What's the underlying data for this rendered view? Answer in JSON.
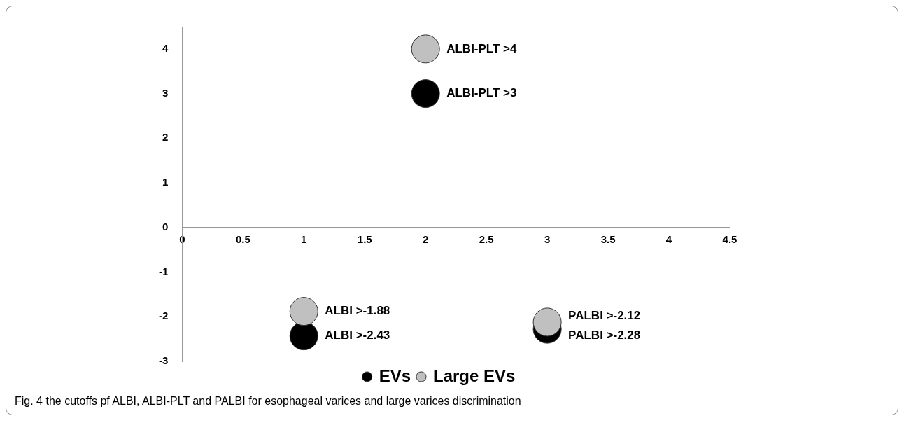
{
  "chart_data": {
    "type": "scatter",
    "xlim": [
      0,
      4.5
    ],
    "xticks": [
      0,
      0.5,
      1,
      1.5,
      2,
      2.5,
      3,
      3.5,
      4,
      4.5
    ],
    "ylim": [
      -3,
      4.5
    ],
    "yticks": [
      -3,
      -2,
      -1,
      0,
      1,
      2,
      3,
      4
    ],
    "grid": false,
    "legend": "bottom",
    "marker": "circle",
    "series": [
      {
        "name": "EVs",
        "color": "#000000",
        "x": [
          2,
          1,
          3
        ],
        "values": [
          3,
          -2.43,
          -2.28
        ]
      },
      {
        "name": "Large EVs",
        "color": "#c0c0c0",
        "x": [
          2,
          1,
          3
        ],
        "values": [
          4,
          -1.88,
          -2.12
        ]
      }
    ],
    "annotations": [
      {
        "text": "ALBI-PLT >4",
        "x": 2,
        "y": 4
      },
      {
        "text": "ALBI-PLT >3",
        "x": 2,
        "y": 3
      },
      {
        "text": "ALBI >-1.88",
        "x": 1,
        "y": -1.88
      },
      {
        "text": "ALBI >-2.43",
        "x": 1,
        "y": -2.43
      },
      {
        "text": "PALBI >-2.12",
        "x": 3,
        "y": -2.12
      },
      {
        "text": "PALBI >-2.28",
        "x": 3,
        "y": -2.28
      },
      "Fig. 4 the cutoffs pf ALBI, ALBI-PLT and PALBI for esophageal varices and large varices discrimination"
    ]
  }
}
